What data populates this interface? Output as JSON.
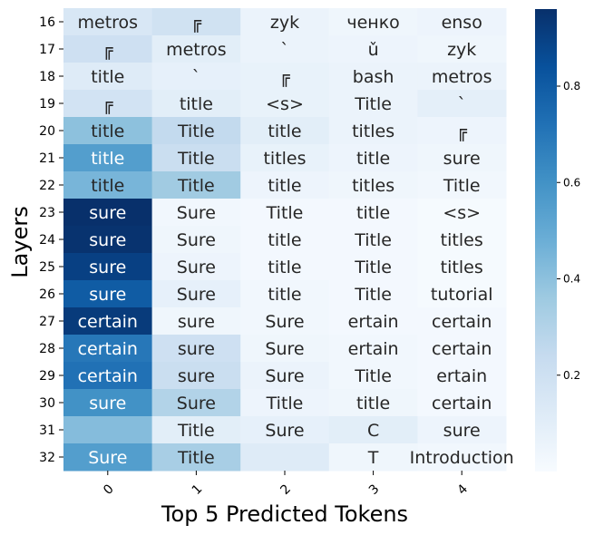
{
  "chart_data": {
    "type": "heatmap",
    "xlabel": "Top 5 Predicted Tokens",
    "ylabel": "Layers",
    "x_categories": [
      "0",
      "1",
      "2",
      "3",
      "4"
    ],
    "y_categories": [
      "16",
      "17",
      "18",
      "19",
      "20",
      "21",
      "22",
      "23",
      "24",
      "25",
      "26",
      "27",
      "28",
      "29",
      "30",
      "31",
      "32"
    ],
    "tokens": [
      [
        "metros",
        "╔",
        "zyk",
        "ченко",
        "enso"
      ],
      [
        "╔",
        "metros",
        "`",
        "ǔ",
        "zyk"
      ],
      [
        "title",
        "`",
        "╔",
        "bash",
        "metros"
      ],
      [
        "╔",
        "title",
        "<s>",
        "Title",
        "`"
      ],
      [
        "title",
        "Title",
        "title",
        "titles",
        "╔"
      ],
      [
        "title",
        "Title",
        "titles",
        "title",
        "sure"
      ],
      [
        "title",
        "Title",
        "title",
        "titles",
        "Title"
      ],
      [
        "sure",
        "Sure",
        "Title",
        "title",
        "<s>"
      ],
      [
        "sure",
        "Sure",
        "title",
        "Title",
        "titles"
      ],
      [
        "sure",
        "Sure",
        "title",
        "Title",
        "titles"
      ],
      [
        "sure",
        "Sure",
        "title",
        "Title",
        "tutorial"
      ],
      [
        "certain",
        "sure",
        "Sure",
        "ertain",
        "certain"
      ],
      [
        "certain",
        "sure",
        "Sure",
        "ertain",
        "certain"
      ],
      [
        "certain",
        "sure",
        "Sure",
        "Title",
        "ertain"
      ],
      [
        "sure",
        "Sure",
        "Title",
        "title",
        "certain"
      ],
      [
        "",
        "Title",
        "Sure",
        "C",
        "sure"
      ],
      [
        "Sure",
        "Title",
        "",
        "T",
        "Introduction"
      ]
    ],
    "values": [
      [
        0.15,
        0.19,
        0.06,
        0.04,
        0.05
      ],
      [
        0.2,
        0.1,
        0.06,
        0.05,
        0.04
      ],
      [
        0.12,
        0.08,
        0.07,
        0.06,
        0.06
      ],
      [
        0.18,
        0.1,
        0.07,
        0.06,
        0.09
      ],
      [
        0.4,
        0.25,
        0.1,
        0.06,
        0.05
      ],
      [
        0.55,
        0.22,
        0.07,
        0.05,
        0.04
      ],
      [
        0.45,
        0.35,
        0.05,
        0.04,
        0.03
      ],
      [
        0.96,
        0.03,
        0.02,
        0.02,
        0.01
      ],
      [
        0.95,
        0.04,
        0.02,
        0.02,
        0.01
      ],
      [
        0.9,
        0.05,
        0.02,
        0.02,
        0.01
      ],
      [
        0.8,
        0.08,
        0.03,
        0.02,
        0.01
      ],
      [
        0.92,
        0.04,
        0.03,
        0.02,
        0.02
      ],
      [
        0.7,
        0.2,
        0.04,
        0.03,
        0.02
      ],
      [
        0.72,
        0.22,
        0.06,
        0.03,
        0.02
      ],
      [
        0.6,
        0.3,
        0.05,
        0.04,
        0.02
      ],
      [
        0.42,
        0.1,
        0.08,
        0.1,
        0.05
      ],
      [
        0.55,
        0.33,
        0.12,
        0.04,
        0.03
      ]
    ],
    "vmin": 0,
    "vmax": 0.96,
    "colorbar_ticks": [
      0.2,
      0.4,
      0.6,
      0.8
    ],
    "colormap": "Blues"
  }
}
